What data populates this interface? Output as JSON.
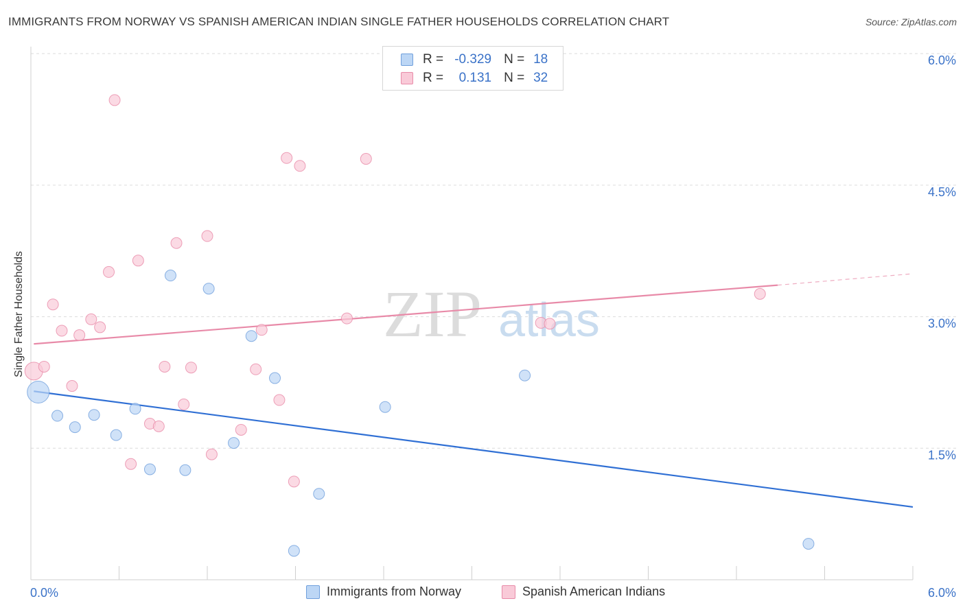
{
  "header": {
    "title": "IMMIGRANTS FROM NORWAY VS SPANISH AMERICAN INDIAN SINGLE FATHER HOUSEHOLDS CORRELATION CHART",
    "source": "Source: ZipAtlas.com"
  },
  "watermark": {
    "zip": "ZIP",
    "atlas": "atlas"
  },
  "legend": {
    "rows": [
      {
        "r_label": "R =",
        "r_value": "-0.329",
        "n_label": "N =",
        "n_value": "18",
        "color": "#6f9fdc"
      },
      {
        "r_label": "R =",
        "r_value": "0.131",
        "n_label": "N =",
        "n_value": "32",
        "color": "#e88aa8"
      }
    ]
  },
  "bottom_legend": {
    "series1": "Immigrants from Norway",
    "series2": "Spanish American Indians"
  },
  "chart_data": {
    "type": "scatter",
    "title": "IMMIGRANTS FROM NORWAY VS SPANISH AMERICAN INDIAN SINGLE FATHER HOUSEHOLDS CORRELATION CHART",
    "xlabel": "",
    "ylabel": "Single Father Households",
    "xlim": [
      0,
      6
    ],
    "ylim": [
      0,
      6.2
    ],
    "x_tick_labels": [
      "0.0%",
      "6.0%"
    ],
    "y_ticks": [
      1.5,
      3.0,
      4.5,
      6.0
    ],
    "y_tick_labels": [
      "1.5%",
      "3.0%",
      "4.5%",
      "6.0%"
    ],
    "grid": true,
    "series": [
      {
        "name": "Immigrants from Norway",
        "color": "#6f9fdc",
        "fill": "#bcd6f5",
        "points": [
          [
            0.05,
            2.14
          ],
          [
            0.18,
            1.87
          ],
          [
            0.3,
            1.74
          ],
          [
            0.43,
            1.88
          ],
          [
            0.58,
            1.65
          ],
          [
            0.71,
            1.95
          ],
          [
            0.81,
            1.26
          ],
          [
            0.95,
            3.47
          ],
          [
            1.05,
            1.25
          ],
          [
            1.21,
            3.32
          ],
          [
            1.38,
            1.56
          ],
          [
            1.5,
            2.78
          ],
          [
            1.66,
            2.3
          ],
          [
            1.79,
            0.33
          ],
          [
            1.96,
            0.98
          ],
          [
            2.41,
            1.97
          ],
          [
            3.36,
            2.33
          ],
          [
            5.29,
            0.41
          ]
        ],
        "trend": {
          "x": [
            0.02,
            6.0
          ],
          "y": [
            2.15,
            0.83
          ]
        }
      },
      {
        "name": "Spanish American Indians",
        "color": "#e88aa8",
        "fill": "#f9cad8",
        "points": [
          [
            0.02,
            2.38
          ],
          [
            0.09,
            2.43
          ],
          [
            0.15,
            3.14
          ],
          [
            0.21,
            2.84
          ],
          [
            0.28,
            2.21
          ],
          [
            0.33,
            2.79
          ],
          [
            0.41,
            2.97
          ],
          [
            0.47,
            2.88
          ],
          [
            0.53,
            3.51
          ],
          [
            0.57,
            5.47
          ],
          [
            0.68,
            1.32
          ],
          [
            0.73,
            3.64
          ],
          [
            0.81,
            1.78
          ],
          [
            0.87,
            1.75
          ],
          [
            0.91,
            2.43
          ],
          [
            0.99,
            3.84
          ],
          [
            1.04,
            2.0
          ],
          [
            1.09,
            2.42
          ],
          [
            1.2,
            3.92
          ],
          [
            1.23,
            1.43
          ],
          [
            1.43,
            1.71
          ],
          [
            1.53,
            2.4
          ],
          [
            1.57,
            2.85
          ],
          [
            1.69,
            2.05
          ],
          [
            1.74,
            4.81
          ],
          [
            1.79,
            1.12
          ],
          [
            1.83,
            4.72
          ],
          [
            2.15,
            2.98
          ],
          [
            2.28,
            4.8
          ],
          [
            3.47,
            2.93
          ],
          [
            3.53,
            2.92
          ],
          [
            4.96,
            3.26
          ]
        ],
        "trend": {
          "x": [
            0.02,
            5.08
          ],
          "y": [
            2.69,
            3.36
          ]
        },
        "trend_extension": {
          "x": [
            5.08,
            6.0
          ],
          "y": [
            3.36,
            3.49
          ]
        }
      }
    ]
  }
}
